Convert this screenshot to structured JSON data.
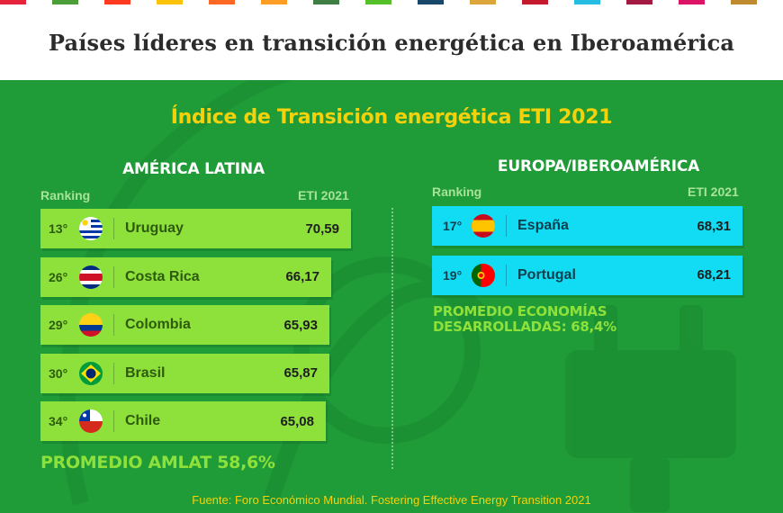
{
  "header": {
    "title": "Países líderes en transición energética en Iberoamérica"
  },
  "subtitle": "Índice de Transición energética ETI 2021",
  "colors": {
    "background": "#1f9b38",
    "latam_row": "#8de13a",
    "europe_row": "#12dcf4",
    "subtitle": "#f4d20b"
  },
  "sdg_colors": [
    "#e5243b",
    "#dda63a",
    "#4c9f38",
    "#c5192d",
    "#ff3a21",
    "#26bde2",
    "#fcc30b",
    "#a21942",
    "#fd6925",
    "#dd1367",
    "#fd9d24",
    "#bf8b2e",
    "#3f7e44",
    "#0a97d9",
    "#56c02b",
    "#00689d",
    "#19486a",
    "#e5243b",
    "#dda63a",
    "#4c9f38",
    "#c5192d",
    "#ff3a21",
    "#26bde2",
    "#fcc30b",
    "#a21942",
    "#fd6925",
    "#dd1367",
    "#fd9d24",
    "#bf8b2e",
    "#3f7e44"
  ],
  "latam": {
    "title": "AMÉRICA LATINA",
    "ranking_label": "Ranking",
    "eti_label": "ETI 2021",
    "average": "PROMEDIO AMLAT 58,6%"
  },
  "europe": {
    "title": "EUROPA/IBEROAMÉRICA",
    "ranking_label": "Ranking",
    "eti_label": "ETI 2021",
    "average_line1": "PROMEDIO ECONOMÍAS",
    "average_line2": "DESARROLLADAS: 68,4%"
  },
  "source": "Fuente: Foro Económico Mundial.  Fostering Effective Energy Transition 2021",
  "chart_data": [
    {
      "type": "bar",
      "title": "AMÉRICA LATINA",
      "categories": [
        "Uruguay",
        "Costa Rica",
        "Colombia",
        "Brasil",
        "Chile"
      ],
      "ranks": [
        "13°",
        "26°",
        "29°",
        "30°",
        "34°"
      ],
      "flags": [
        "uruguay-flag-icon",
        "costa-rica-flag-icon",
        "colombia-flag-icon",
        "brazil-flag-icon",
        "chile-flag-icon"
      ],
      "values": [
        70.59,
        66.17,
        65.93,
        65.87,
        65.08
      ],
      "value_labels": [
        "70,59",
        "66,17",
        "65,93",
        "65,87",
        "65,08"
      ]
    },
    {
      "type": "bar",
      "title": "EUROPA/IBEROAMÉRICA",
      "categories": [
        "España",
        "Portugal"
      ],
      "ranks": [
        "17°",
        "19°"
      ],
      "flags": [
        "spain-flag-icon",
        "portugal-flag-icon"
      ],
      "values": [
        68.31,
        68.21
      ],
      "value_labels": [
        "68,31",
        "68,21"
      ]
    }
  ]
}
